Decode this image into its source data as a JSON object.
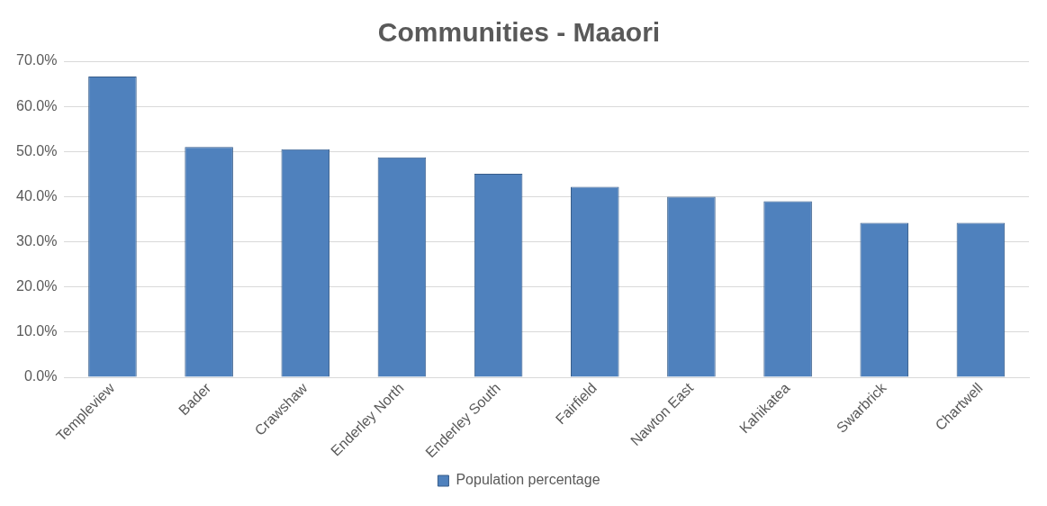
{
  "chart_data": {
    "type": "bar",
    "title": "Communities - Maaori",
    "categories": [
      "Templeview",
      "Bader",
      "Crawshaw",
      "Enderley North",
      "Enderley South",
      "Fairfield",
      "Nawton East",
      "Kahikatea",
      "Swarbrick",
      "Chartwell"
    ],
    "series": [
      {
        "name": "Population percentage",
        "color": "#4f81bd",
        "values": [
          66.6,
          51.0,
          50.5,
          48.7,
          45.1,
          42.2,
          40.0,
          39.0,
          34.2,
          34.2
        ]
      }
    ],
    "ylim": [
      0,
      70
    ],
    "yticks": [
      {
        "value": 0,
        "label": "0.0%"
      },
      {
        "value": 10,
        "label": "10.0%"
      },
      {
        "value": 20,
        "label": "20.0%"
      },
      {
        "value": 30,
        "label": "30.0%"
      },
      {
        "value": 40,
        "label": "40.0%"
      },
      {
        "value": 50,
        "label": "50.0%"
      },
      {
        "value": 60,
        "label": "60.0%"
      },
      {
        "value": 70,
        "label": "70.0%"
      }
    ],
    "grid": "y",
    "legend": "bottom"
  }
}
